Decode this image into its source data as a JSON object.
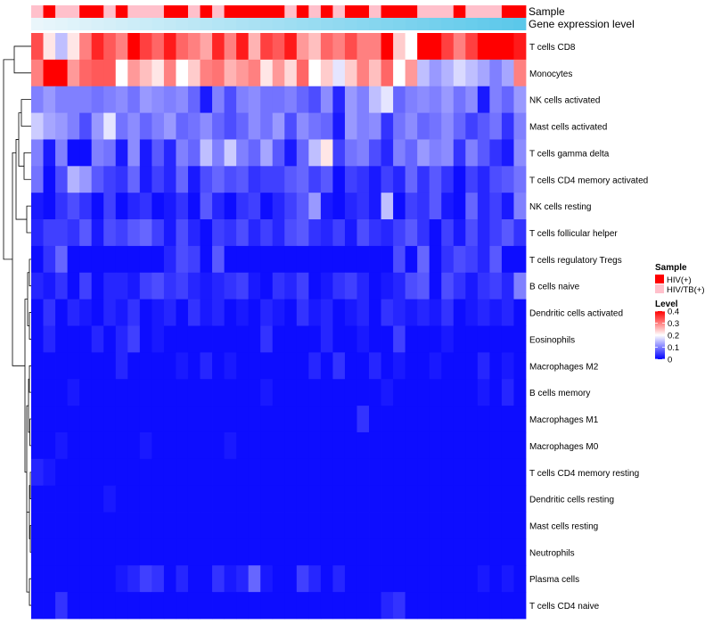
{
  "chart_data": {
    "type": "heatmap",
    "title": "",
    "annotation_tracks": [
      {
        "label": "Sample",
        "type": "categorical",
        "values": [
          1,
          0,
          1,
          1,
          0,
          0,
          1,
          0,
          1,
          1,
          1,
          0,
          0,
          1,
          0,
          1,
          0,
          0,
          0,
          0,
          0,
          1,
          0,
          1,
          0,
          1,
          0,
          0,
          1,
          0,
          0,
          0,
          1,
          1,
          1,
          0,
          1,
          1,
          1,
          0,
          0
        ]
      },
      {
        "label": "Gene expression level",
        "type": "continuous",
        "low_color": "#eaf6fb",
        "high_color": "#5bc8ea"
      }
    ],
    "rows": [
      "T cells CD8",
      "Monocytes",
      "NK cells activated",
      "Mast cells activated",
      "T cells gamma delta",
      "T cells CD4 memory activated",
      "NK cells resting",
      "T cells follicular helper",
      "T cells regulatory  Tregs",
      "B cells naive",
      "Dendritic cells activated",
      "Eosinophils",
      "Macrophages M2",
      "B cells memory",
      "Macrophages M1",
      "Macrophages M0",
      "T cells CD4 memory resting",
      "Dendritic cells resting",
      "Mast cells resting",
      "Neutrophils",
      "Plasma cells",
      "T cells CD4 naive"
    ],
    "n_columns": 41,
    "values": [
      [
        0.34,
        0.22,
        0.15,
        0.22,
        0.3,
        0.37,
        0.33,
        0.3,
        0.4,
        0.35,
        0.32,
        0.38,
        0.32,
        0.3,
        0.27,
        0.37,
        0.3,
        0.38,
        0.26,
        0.35,
        0.33,
        0.38,
        0.28,
        0.25,
        0.32,
        0.3,
        0.34,
        0.3,
        0.3,
        0.42,
        0.24,
        0.2,
        0.42,
        0.4,
        0.35,
        0.3,
        0.35,
        0.4,
        0.4,
        0.4,
        0.38
      ],
      [
        0.3,
        0.4,
        0.4,
        0.28,
        0.32,
        0.33,
        0.33,
        0.2,
        0.28,
        0.25,
        0.22,
        0.3,
        0.2,
        0.24,
        0.3,
        0.31,
        0.26,
        0.28,
        0.3,
        0.22,
        0.28,
        0.23,
        0.32,
        0.2,
        0.24,
        0.18,
        0.24,
        0.3,
        0.25,
        0.32,
        0.2,
        0.28,
        0.15,
        0.12,
        0.14,
        0.17,
        0.15,
        0.13,
        0.1,
        0.13,
        0.3
      ],
      [
        0.1,
        0.12,
        0.1,
        0.1,
        0.1,
        0.09,
        0.1,
        0.11,
        0.09,
        0.12,
        0.11,
        0.1,
        0.11,
        0.08,
        0.02,
        0.1,
        0.06,
        0.1,
        0.11,
        0.09,
        0.09,
        0.1,
        0.08,
        0.06,
        0.11,
        0.03,
        0.12,
        0.1,
        0.15,
        0.18,
        0.08,
        0.1,
        0.11,
        0.1,
        0.12,
        0.09,
        0.11,
        0.02,
        0.1,
        0.08,
        0.12
      ],
      [
        0.16,
        0.13,
        0.12,
        0.1,
        0.06,
        0.12,
        0.18,
        0.09,
        0.11,
        0.08,
        0.1,
        0.12,
        0.08,
        0.09,
        0.11,
        0.08,
        0.06,
        0.08,
        0.11,
        0.09,
        0.12,
        0.06,
        0.11,
        0.09,
        0.08,
        0.02,
        0.12,
        0.1,
        0.11,
        0.04,
        0.09,
        0.11,
        0.08,
        0.09,
        0.11,
        0.08,
        0.05,
        0.07,
        0.09,
        0.04,
        0.1
      ],
      [
        0.1,
        0.02,
        0.1,
        0.01,
        0.01,
        0.1,
        0.09,
        0.02,
        0.11,
        0.02,
        0.07,
        0.03,
        0.1,
        0.08,
        0.15,
        0.1,
        0.16,
        0.1,
        0.08,
        0.13,
        0.07,
        0.02,
        0.08,
        0.15,
        0.22,
        0.05,
        0.09,
        0.1,
        0.06,
        0.03,
        0.1,
        0.08,
        0.12,
        0.1,
        0.11,
        0.04,
        0.1,
        0.07,
        0.04,
        0.02,
        0.11
      ],
      [
        0.09,
        0.01,
        0.06,
        0.14,
        0.12,
        0.07,
        0.05,
        0.04,
        0.08,
        0.02,
        0.05,
        0.03,
        0.08,
        0.02,
        0.06,
        0.08,
        0.06,
        0.07,
        0.04,
        0.05,
        0.05,
        0.07,
        0.08,
        0.05,
        0.07,
        0.01,
        0.05,
        0.04,
        0.02,
        0.05,
        0.03,
        0.08,
        0.04,
        0.07,
        0.04,
        0.01,
        0.05,
        0.03,
        0.06,
        0.07,
        0.09
      ],
      [
        0.02,
        0.01,
        0.04,
        0.06,
        0.04,
        0.01,
        0.05,
        0.01,
        0.03,
        0.04,
        0.01,
        0.02,
        0.04,
        0.01,
        0.07,
        0.03,
        0.01,
        0.04,
        0.05,
        0.01,
        0.03,
        0.05,
        0.07,
        0.12,
        0.02,
        0.01,
        0.03,
        0.04,
        0.02,
        0.15,
        0.01,
        0.05,
        0.04,
        0.07,
        0.02,
        0.01,
        0.08,
        0.03,
        0.05,
        0.02,
        0.1
      ],
      [
        0.03,
        0.05,
        0.05,
        0.04,
        0.07,
        0.02,
        0.06,
        0.05,
        0.07,
        0.08,
        0.05,
        0.02,
        0.06,
        0.03,
        0.01,
        0.05,
        0.04,
        0.06,
        0.03,
        0.05,
        0.03,
        0.06,
        0.07,
        0.04,
        0.03,
        0.05,
        0.02,
        0.06,
        0.04,
        0.03,
        0.05,
        0.07,
        0.04,
        0.01,
        0.05,
        0.02,
        0.06,
        0.03,
        0.05,
        0.07,
        0.04
      ],
      [
        0.01,
        0.04,
        0.08,
        0.01,
        0.01,
        0.01,
        0.01,
        0.01,
        0.01,
        0.01,
        0.01,
        0.03,
        0.06,
        0.05,
        0.01,
        0.07,
        0.01,
        0.01,
        0.01,
        0.01,
        0.01,
        0.01,
        0.01,
        0.01,
        0.01,
        0.01,
        0.01,
        0.01,
        0.01,
        0.01,
        0.06,
        0.01,
        0.08,
        0.01,
        0.04,
        0.06,
        0.05,
        0.03,
        0.07,
        0.01,
        0.01
      ],
      [
        0.03,
        0.02,
        0.04,
        0.01,
        0.05,
        0.01,
        0.03,
        0.03,
        0.02,
        0.05,
        0.06,
        0.04,
        0.05,
        0.03,
        0.02,
        0.03,
        0.04,
        0.05,
        0.02,
        0.01,
        0.04,
        0.03,
        0.05,
        0.01,
        0.02,
        0.04,
        0.05,
        0.03,
        0.01,
        0.02,
        0.03,
        0.06,
        0.07,
        0.01,
        0.06,
        0.04,
        0.02,
        0.04,
        0.05,
        0.03,
        0.1
      ],
      [
        0.01,
        0.04,
        0.01,
        0.03,
        0.02,
        0.01,
        0.03,
        0.02,
        0.04,
        0.01,
        0.02,
        0.03,
        0.01,
        0.04,
        0.02,
        0.03,
        0.01,
        0.02,
        0.01,
        0.03,
        0.02,
        0.01,
        0.04,
        0.02,
        0.03,
        0.01,
        0.02,
        0.03,
        0.01,
        0.04,
        0.03,
        0.02,
        0.03,
        0.02,
        0.04,
        0.01,
        0.02,
        0.03,
        0.02,
        0.03,
        0.01
      ],
      [
        0.01,
        0.03,
        0.01,
        0.01,
        0.01,
        0.03,
        0.01,
        0.03,
        0.05,
        0.01,
        0.02,
        0.01,
        0.01,
        0.01,
        0.01,
        0.01,
        0.01,
        0.01,
        0.01,
        0.04,
        0.01,
        0.01,
        0.01,
        0.01,
        0.03,
        0.01,
        0.01,
        0.02,
        0.01,
        0.01,
        0.05,
        0.01,
        0.01,
        0.01,
        0.02,
        0.01,
        0.01,
        0.01,
        0.01,
        0.01,
        0.01
      ],
      [
        0.01,
        0.01,
        0.01,
        0.01,
        0.01,
        0.01,
        0.01,
        0.03,
        0.01,
        0.01,
        0.01,
        0.01,
        0.02,
        0.01,
        0.03,
        0.01,
        0.02,
        0.01,
        0.01,
        0.01,
        0.01,
        0.01,
        0.01,
        0.03,
        0.01,
        0.04,
        0.01,
        0.01,
        0.03,
        0.01,
        0.02,
        0.01,
        0.01,
        0.02,
        0.01,
        0.01,
        0.01,
        0.03,
        0.01,
        0.02,
        0.01
      ],
      [
        0.01,
        0.01,
        0.01,
        0.02,
        0.01,
        0.01,
        0.01,
        0.01,
        0.01,
        0.01,
        0.01,
        0.01,
        0.01,
        0.01,
        0.01,
        0.01,
        0.01,
        0.01,
        0.01,
        0.02,
        0.01,
        0.01,
        0.01,
        0.01,
        0.01,
        0.01,
        0.01,
        0.01,
        0.01,
        0.02,
        0.01,
        0.01,
        0.01,
        0.01,
        0.01,
        0.01,
        0.01,
        0.02,
        0.01,
        0.03,
        0.01
      ],
      [
        0.01,
        0.01,
        0.01,
        0.01,
        0.01,
        0.01,
        0.01,
        0.01,
        0.01,
        0.01,
        0.01,
        0.01,
        0.01,
        0.01,
        0.01,
        0.01,
        0.01,
        0.01,
        0.01,
        0.01,
        0.01,
        0.01,
        0.01,
        0.01,
        0.01,
        0.01,
        0.01,
        0.04,
        0.01,
        0.01,
        0.01,
        0.01,
        0.01,
        0.01,
        0.01,
        0.01,
        0.01,
        0.01,
        0.01,
        0.01,
        0.01
      ],
      [
        0.01,
        0.01,
        0.02,
        0.01,
        0.01,
        0.01,
        0.01,
        0.01,
        0.01,
        0.02,
        0.01,
        0.01,
        0.01,
        0.01,
        0.01,
        0.01,
        0.02,
        0.01,
        0.01,
        0.01,
        0.01,
        0.01,
        0.01,
        0.01,
        0.01,
        0.01,
        0.01,
        0.01,
        0.01,
        0.01,
        0.01,
        0.01,
        0.01,
        0.01,
        0.01,
        0.01,
        0.01,
        0.01,
        0.01,
        0.01,
        0.01
      ],
      [
        0.03,
        0.02,
        0.01,
        0.01,
        0.01,
        0.01,
        0.01,
        0.01,
        0.01,
        0.01,
        0.01,
        0.01,
        0.01,
        0.01,
        0.01,
        0.01,
        0.01,
        0.01,
        0.01,
        0.01,
        0.01,
        0.01,
        0.01,
        0.01,
        0.01,
        0.01,
        0.01,
        0.01,
        0.01,
        0.01,
        0.01,
        0.01,
        0.01,
        0.01,
        0.01,
        0.01,
        0.01,
        0.01,
        0.01,
        0.01,
        0.01
      ],
      [
        0.01,
        0.01,
        0.01,
        0.01,
        0.01,
        0.01,
        0.02,
        0.01,
        0.01,
        0.01,
        0.01,
        0.01,
        0.01,
        0.01,
        0.01,
        0.01,
        0.01,
        0.01,
        0.01,
        0.01,
        0.01,
        0.01,
        0.01,
        0.01,
        0.01,
        0.01,
        0.01,
        0.01,
        0.01,
        0.01,
        0.01,
        0.01,
        0.01,
        0.01,
        0.01,
        0.01,
        0.01,
        0.01,
        0.01,
        0.01,
        0.01
      ],
      [
        0.01,
        0.01,
        0.01,
        0.01,
        0.01,
        0.01,
        0.01,
        0.01,
        0.01,
        0.01,
        0.01,
        0.01,
        0.01,
        0.01,
        0.01,
        0.01,
        0.01,
        0.01,
        0.01,
        0.01,
        0.01,
        0.01,
        0.01,
        0.01,
        0.01,
        0.01,
        0.01,
        0.01,
        0.01,
        0.01,
        0.01,
        0.01,
        0.01,
        0.01,
        0.01,
        0.01,
        0.01,
        0.01,
        0.01,
        0.01,
        0.01
      ],
      [
        0.01,
        0.01,
        0.01,
        0.01,
        0.01,
        0.01,
        0.01,
        0.01,
        0.01,
        0.01,
        0.01,
        0.01,
        0.01,
        0.01,
        0.01,
        0.01,
        0.01,
        0.01,
        0.01,
        0.01,
        0.01,
        0.01,
        0.01,
        0.01,
        0.01,
        0.01,
        0.01,
        0.01,
        0.01,
        0.01,
        0.01,
        0.01,
        0.01,
        0.01,
        0.01,
        0.01,
        0.01,
        0.01,
        0.01,
        0.01,
        0.01
      ],
      [
        0.01,
        0.01,
        0.01,
        0.01,
        0.01,
        0.01,
        0.01,
        0.02,
        0.03,
        0.05,
        0.04,
        0.01,
        0.03,
        0.01,
        0.01,
        0.04,
        0.02,
        0.03,
        0.08,
        0.02,
        0.01,
        0.01,
        0.05,
        0.03,
        0.01,
        0.03,
        0.01,
        0.01,
        0.01,
        0.01,
        0.01,
        0.01,
        0.01,
        0.01,
        0.01,
        0.01,
        0.01,
        0.02,
        0.01,
        0.02,
        0.01
      ],
      [
        0.01,
        0.01,
        0.04,
        0.01,
        0.01,
        0.01,
        0.01,
        0.01,
        0.01,
        0.01,
        0.01,
        0.01,
        0.01,
        0.01,
        0.01,
        0.01,
        0.01,
        0.01,
        0.01,
        0.01,
        0.01,
        0.01,
        0.01,
        0.01,
        0.01,
        0.01,
        0.01,
        0.01,
        0.01,
        0.03,
        0.04,
        0.01,
        0.01,
        0.01,
        0.01,
        0.01,
        0.01,
        0.01,
        0.01,
        0.01,
        0.01
      ]
    ],
    "legend": {
      "sample_title": "Sample",
      "sample_entries": [
        {
          "label": "HIV(+)",
          "color": "#ff0000"
        },
        {
          "label": "HIV/TB(+)",
          "color": "#ffc0cb"
        }
      ],
      "level_title": "Level",
      "level_ticks": [
        "0.4",
        "0.3",
        "0.2",
        "0.1",
        "0"
      ],
      "level_tick_values": [
        0.4,
        0.3,
        0.2,
        0.1,
        0
      ],
      "level_range": [
        0,
        0.4
      ]
    },
    "colors": {
      "low": "#0000ff",
      "mid": "#ffffff",
      "high": "#ff0000",
      "mid_value": 0.2
    },
    "dendrogram": "row"
  }
}
